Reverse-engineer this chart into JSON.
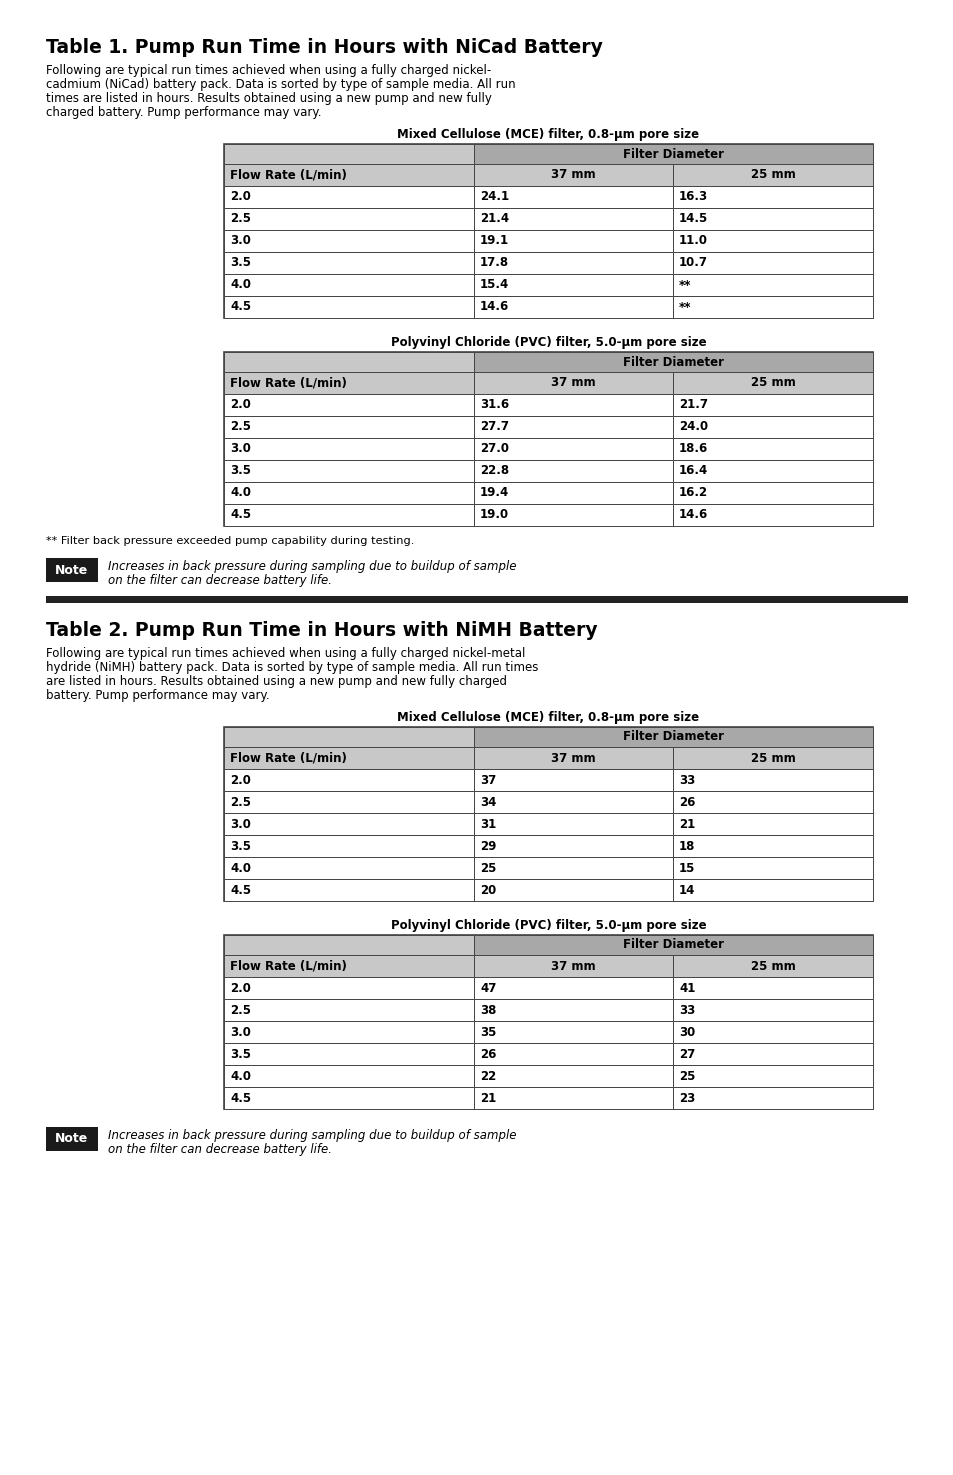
{
  "page_bg": "#ffffff",
  "table1_title": "Table 1. Pump Run Time in Hours with NiCad Battery",
  "table1_desc1": "Following are typical run times achieved when using a fully charged nickel-",
  "table1_desc2": "cadmium (NiCad) battery pack. Data is sorted by type of sample media. All run",
  "table1_desc3": "times are listed in hours. Results obtained using a new pump and new fully",
  "table1_desc4": "charged battery. Pump performance may vary.",
  "table1_mce_label": "Mixed Cellulose (MCE) filter, 0.8-μm pore size",
  "table1_mce_header_span": "Filter Diameter",
  "table1_mce_col1": "Flow Rate (L/min)",
  "table1_mce_col2": "37 mm",
  "table1_mce_col3": "25 mm",
  "table1_mce_rows": [
    [
      "2.0",
      "24.1",
      "16.3"
    ],
    [
      "2.5",
      "21.4",
      "14.5"
    ],
    [
      "3.0",
      "19.1",
      "11.0"
    ],
    [
      "3.5",
      "17.8",
      "10.7"
    ],
    [
      "4.0",
      "15.4",
      "**"
    ],
    [
      "4.5",
      "14.6",
      "**"
    ]
  ],
  "table1_pvc_label": "Polyvinyl Chloride (PVC) filter, 5.0-μm pore size",
  "table1_pvc_header_span": "Filter Diameter",
  "table1_pvc_col1": "Flow Rate (L/min)",
  "table1_pvc_col2": "37 mm",
  "table1_pvc_col3": "25 mm",
  "table1_pvc_rows": [
    [
      "2.0",
      "31.6",
      "21.7"
    ],
    [
      "2.5",
      "27.7",
      "24.0"
    ],
    [
      "3.0",
      "27.0",
      "18.6"
    ],
    [
      "3.5",
      "22.8",
      "16.4"
    ],
    [
      "4.0",
      "19.4",
      "16.2"
    ],
    [
      "4.5",
      "19.0",
      "14.6"
    ]
  ],
  "footnote": "** Filter back pressure exceeded pump capability during testing.",
  "note_text_line1": "Increases in back pressure during sampling due to buildup of sample",
  "note_text_line2": "on the filter can decrease battery life.",
  "separator_color": "#222222",
  "table2_title": "Table 2. Pump Run Time in Hours with NiMH Battery",
  "table2_desc1": "Following are typical run times achieved when using a fully charged nickel-metal",
  "table2_desc2": "hydride (NiMH) battery pack. Data is sorted by type of sample media. All run times",
  "table2_desc3": "are listed in hours. Results obtained using a new pump and new fully charged",
  "table2_desc4": "battery. Pump performance may vary.",
  "table2_mce_label": "Mixed Cellulose (MCE) filter, 0.8-μm pore size",
  "table2_mce_header_span": "Filter Diameter",
  "table2_mce_col1": "Flow Rate (L/min)",
  "table2_mce_col2": "37 mm",
  "table2_mce_col3": "25 mm",
  "table2_mce_rows": [
    [
      "2.0",
      "37",
      "33"
    ],
    [
      "2.5",
      "34",
      "26"
    ],
    [
      "3.0",
      "31",
      "21"
    ],
    [
      "3.5",
      "29",
      "18"
    ],
    [
      "4.0",
      "25",
      "15"
    ],
    [
      "4.5",
      "20",
      "14"
    ]
  ],
  "table2_pvc_label": "Polyvinyl Chloride (PVC) filter, 5.0-μm pore size",
  "table2_pvc_header_span": "Filter Diameter",
  "table2_pvc_col1": "Flow Rate (L/min)",
  "table2_pvc_col2": "37 mm",
  "table2_pvc_col3": "25 mm",
  "table2_pvc_rows": [
    [
      "2.0",
      "47",
      "41"
    ],
    [
      "2.5",
      "38",
      "33"
    ],
    [
      "3.0",
      "35",
      "30"
    ],
    [
      "3.5",
      "26",
      "27"
    ],
    [
      "4.0",
      "22",
      "25"
    ],
    [
      "4.5",
      "21",
      "23"
    ]
  ],
  "header_bg": "#a8a8a8",
  "subheader_bg": "#c8c8c8",
  "note_bg": "#1a1a1a",
  "note_fg": "#ffffff",
  "table_border": "#444444",
  "lm": 0.048,
  "tl": 0.235,
  "tr": 0.915
}
